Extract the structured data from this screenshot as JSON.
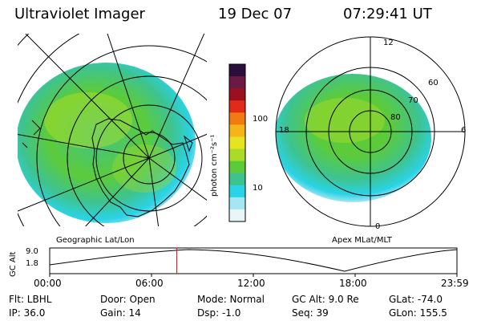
{
  "header": {
    "instrument": "Ultraviolet Imager",
    "date": "19 Dec 07",
    "time": "07:29:41 UT"
  },
  "colorbar": {
    "unit_label": "photon cm⁻²s⁻¹",
    "ticks": [
      "100",
      "10"
    ],
    "colors": [
      "#2b0f3a",
      "#6a1a45",
      "#9b1020",
      "#e22a18",
      "#f27a12",
      "#f5b51a",
      "#e6e41e",
      "#a8dc28",
      "#5ccb3a",
      "#3ec38f",
      "#2ad3e6",
      "#a6e6f2",
      "#e9f6f8"
    ]
  },
  "geo_panel": {
    "label": "Geographic Lat/Lon"
  },
  "mlt_panel": {
    "label": "Apex MLat/MLT",
    "lt_labels": {
      "top": "12",
      "left": "18",
      "right": "6",
      "bottom": "0"
    },
    "lat_labels": [
      "60",
      "70",
      "80"
    ]
  },
  "altitude_plot": {
    "ylabel": "GC Alt",
    "yticks": [
      "9.0",
      "1.8"
    ],
    "xticks": [
      "00:00",
      "06:00",
      "12:00",
      "18:00",
      "23:59"
    ],
    "current_marker_hour": 7.49
  },
  "status": {
    "row1": {
      "flt": "Flt: LBHL",
      "door": "Door: Open",
      "mode": "Mode: Normal",
      "gcalt": "GC Alt: 9.0 Re",
      "glat": "GLat: -74.0"
    },
    "row2": {
      "ip": "IP: 36.0",
      "gain": "Gain: 14",
      "dsp": "Dsp:   -1.0",
      "seq": "Seq: 39",
      "glon": "GLon: 155.5"
    }
  }
}
